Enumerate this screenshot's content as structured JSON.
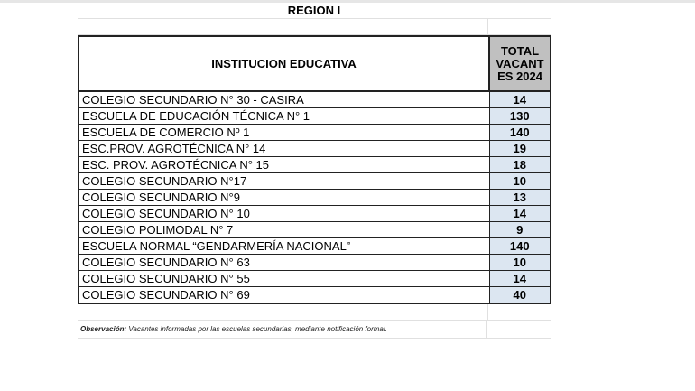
{
  "title": "REGION I",
  "headers": {
    "institution": "INSTITUCION EDUCATIVA",
    "total": "TOTAL VACANT ES 2024"
  },
  "rows": [
    {
      "name": "COLEGIO SECUNDARIO N° 30 - CASIRA",
      "value": "14"
    },
    {
      "name": "ESCUELA DE EDUCACIÓN TÉCNICA N° 1",
      "value": "130"
    },
    {
      "name": "ESCUELA DE COMERCIO Nº 1",
      "value": "140"
    },
    {
      "name": "ESC.PROV. AGROTÉCNICA N° 14",
      "value": "19"
    },
    {
      "name": "ESC. PROV. AGROTÉCNICA N° 15",
      "value": "18"
    },
    {
      "name": "COLEGIO SECUNDARIO N°17",
      "value": "10"
    },
    {
      "name": "COLEGIO SECUNDARIO N°9",
      "value": "13"
    },
    {
      "name": "COLEGIO SECUNDARIO N° 10",
      "value": "14"
    },
    {
      "name": "COLEGIO POLIMODAL N° 7",
      "value": "9"
    },
    {
      "name": "ESCUELA NORMAL “GENDARMERÍA NACIONAL”",
      "value": "140"
    },
    {
      "name": "COLEGIO SECUNDARIO N° 63",
      "value": "10"
    },
    {
      "name": "COLEGIO SECUNDARIO N° 55",
      "value": "14"
    },
    {
      "name": "COLEGIO SECUNDARIO N° 69",
      "value": "40"
    }
  ],
  "observation": {
    "label": "Observación:",
    "text": " Vacantes informadas por las escuelas secundarias, mediante notificación formal."
  },
  "colors": {
    "header_bg": "#c0c0c0",
    "value_bg": "#dce6f1"
  }
}
